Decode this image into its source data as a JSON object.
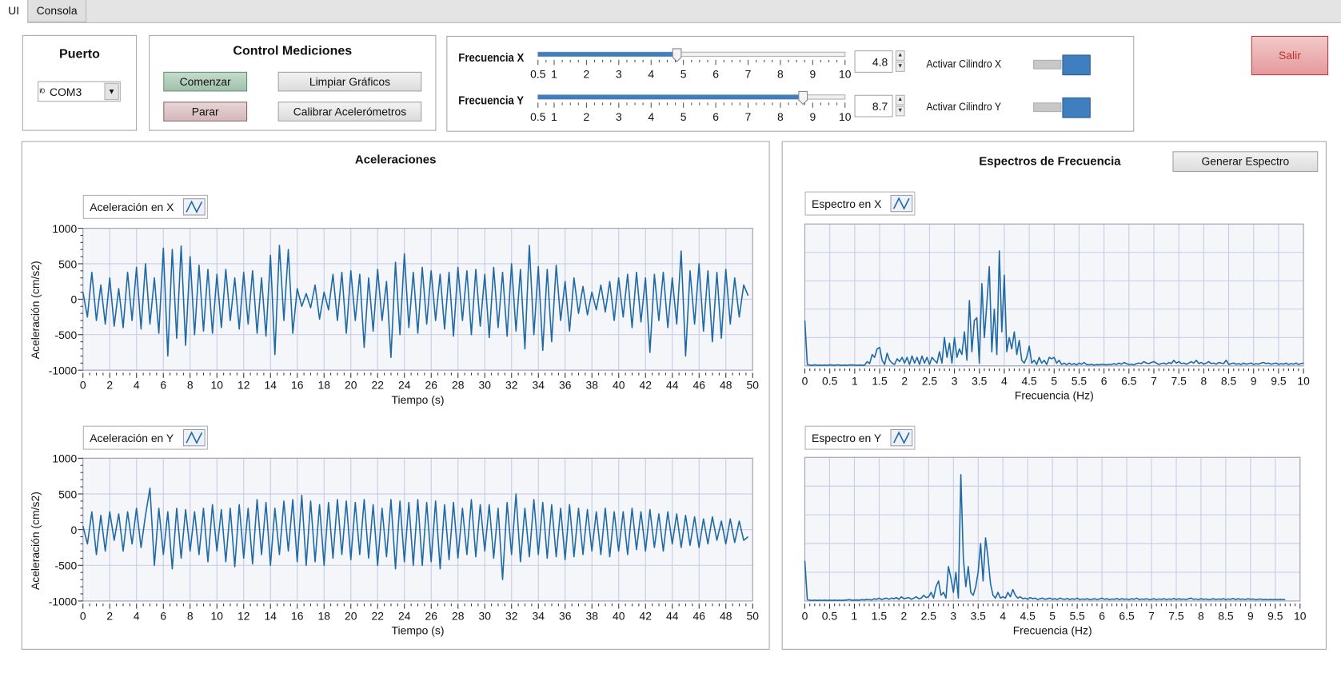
{
  "tabs": [
    {
      "label": "UI",
      "selected": true
    },
    {
      "label": "Consola",
      "selected": false
    }
  ],
  "puerto": {
    "title": "Puerto",
    "icon": "io-icon",
    "icon_text": "I/O",
    "value": "COM3"
  },
  "control": {
    "title": "Control Mediciones",
    "start": "Comenzar",
    "stop": "Parar",
    "clear": "Limpiar Gráficos",
    "calibrate": "Calibrar Acelerómetros"
  },
  "sliders": [
    {
      "label": "Frecuencia X",
      "value": 4.8,
      "value_text": "4.8",
      "min": 0.5,
      "max": 10,
      "ticks": [
        "0.5",
        "1",
        "2",
        "3",
        "4",
        "5",
        "6",
        "7",
        "8",
        "9",
        "10"
      ],
      "toggle_label": "Activar Cilindro X",
      "toggle_on": true
    },
    {
      "label": "Frecuencia Y",
      "value": 8.7,
      "value_text": "8.7",
      "min": 0.5,
      "max": 10,
      "ticks": [
        "0.5",
        "1",
        "2",
        "3",
        "4",
        "5",
        "6",
        "7",
        "8",
        "9",
        "10"
      ],
      "toggle_label": "Activar Cilindro Y",
      "toggle_on": true
    }
  ],
  "exit": {
    "label": "Salir"
  },
  "accel_panel": {
    "title": "Aceleraciones"
  },
  "spectrum_panel": {
    "title": "Espectros de Frecuencia",
    "button": "Generar Espectro"
  },
  "colors": {
    "series": "#1f6aa5",
    "grid": "#c7cbe6",
    "plot_bg": "#f4f6f9",
    "exit_text": "#c03030"
  },
  "chart_data": [
    {
      "type": "line",
      "legend": "Aceleración en X",
      "xlabel": "Tiempo (s)",
      "ylabel": "Aceleración (cm/s2)",
      "xlim": [
        0,
        50
      ],
      "ylim": [
        -1000,
        1000
      ],
      "x_major": 2,
      "x_minor": 0.5,
      "y_ticks": [
        1000,
        500,
        0,
        -500,
        -1000
      ],
      "y_minor": 100,
      "x_step": 0.3333,
      "values": [
        100,
        -250,
        380,
        -300,
        200,
        -350,
        300,
        -380,
        150,
        -400,
        380,
        -300,
        450,
        -420,
        500,
        -350,
        300,
        -480,
        720,
        -800,
        700,
        -550,
        750,
        -650,
        600,
        -500,
        480,
        -450,
        420,
        -480,
        350,
        -400,
        420,
        -300,
        300,
        -420,
        380,
        -350,
        400,
        -480,
        300,
        -520,
        620,
        -780,
        760,
        -300,
        700,
        -480,
        150,
        -100,
        80,
        -120,
        200,
        -280,
        100,
        -150,
        350,
        -300,
        380,
        -480,
        400,
        -300,
        350,
        -680,
        300,
        -450,
        420,
        -300,
        250,
        -820,
        520,
        -500,
        640,
        -400,
        380,
        -480,
        450,
        -350,
        400,
        -300,
        350,
        -420,
        380,
        -520,
        450,
        -300,
        400,
        -500,
        420,
        -380,
        350,
        -540,
        450,
        -400,
        380,
        -520,
        500,
        -450,
        420,
        -700,
        760,
        -500,
        460,
        -720,
        420,
        -600,
        480,
        -300,
        250,
        -450,
        300,
        -200,
        180,
        -220,
        100,
        -150,
        200,
        -180,
        250,
        -300,
        300,
        -250,
        350,
        -400,
        380,
        -320,
        300,
        -750,
        350,
        -300,
        380,
        -400,
        300,
        -350,
        680,
        -800,
        400,
        -350,
        500,
        -450,
        400,
        -600,
        380,
        -550,
        420,
        -350,
        300,
        -250,
        200,
        50
      ]
    },
    {
      "type": "line",
      "legend": "Aceleración en Y",
      "xlabel": "Tiempo (s)",
      "ylabel": "Aceleración (cm/s2)",
      "xlim": [
        0,
        50
      ],
      "ylim": [
        -1000,
        1000
      ],
      "x_major": 2,
      "x_minor": 0.5,
      "y_ticks": [
        1000,
        500,
        0,
        -500,
        -1000
      ],
      "y_minor": 100,
      "x_step": 0.3333,
      "values": [
        50,
        -200,
        250,
        -350,
        200,
        -300,
        250,
        -150,
        220,
        -300,
        250,
        -200,
        300,
        -250,
        200,
        580,
        -500,
        300,
        -350,
        250,
        -550,
        300,
        -400,
        280,
        -300,
        250,
        -350,
        300,
        -450,
        350,
        -300,
        280,
        -450,
        300,
        -520,
        350,
        -400,
        300,
        -480,
        420,
        -350,
        380,
        -500,
        300,
        -350,
        400,
        -300,
        420,
        -450,
        480,
        -500,
        400,
        -450,
        350,
        -500,
        380,
        -400,
        420,
        -350,
        400,
        -420,
        380,
        -350,
        420,
        -400,
        350,
        -500,
        300,
        -380,
        420,
        -550,
        400,
        -450,
        380,
        -500,
        420,
        -500,
        380,
        -450,
        400,
        -550,
        350,
        -420,
        380,
        -400,
        300,
        -350,
        420,
        -380,
        350,
        -300,
        350,
        -400,
        300,
        -700,
        380,
        -350,
        500,
        -450,
        300,
        -380,
        420,
        -350,
        380,
        -400,
        350,
        -380,
        300,
        -420,
        350,
        -380,
        300,
        -350,
        280,
        -300,
        250,
        -350,
        300,
        -380,
        250,
        -300,
        250,
        -350,
        300,
        -280,
        250,
        -300,
        280,
        -250,
        220,
        -300,
        250,
        -200,
        220,
        -250,
        200,
        -220,
        180,
        -250,
        150,
        -200,
        180,
        -150,
        120,
        -200,
        150,
        -180,
        120,
        -150,
        -100
      ]
    },
    {
      "type": "line",
      "legend": "Espectro en X",
      "xlabel": "Frecuencia (Hz)",
      "xlim": [
        0,
        10
      ],
      "ylim": [
        0,
        5
      ],
      "x_major": 0.5,
      "x_minor": 0.1,
      "y_grid": 1,
      "x_tick_labels": [
        "0",
        "0.5",
        "1",
        "1.5",
        "2",
        "2.5",
        "3",
        "3.5",
        "4",
        "4.5",
        "5",
        "5.5",
        "6",
        "6.5",
        "7",
        "7.5",
        "8",
        "8.5",
        "9",
        "9.5",
        "10"
      ],
      "x_step": 0.05,
      "values": [
        1.6,
        0.05,
        0.03,
        0.02,
        0.04,
        0.02,
        0.03,
        0.02,
        0.03,
        0.02,
        0.04,
        0.03,
        0.02,
        0.04,
        0.03,
        0.02,
        0.03,
        0.02,
        0.04,
        0.03,
        0.03,
        0.02,
        0.03,
        0.02,
        0.03,
        0.15,
        0.08,
        0.4,
        0.3,
        0.6,
        0.65,
        0.2,
        0.05,
        0.45,
        0.2,
        0.1,
        0.05,
        0.25,
        0.15,
        0.3,
        0.1,
        0.3,
        0.05,
        0.35,
        0.1,
        0.3,
        0.05,
        0.35,
        0.1,
        0.3,
        0.05,
        0.3,
        0.2,
        0.1,
        0.5,
        0.1,
        1.0,
        0.3,
        0.8,
        0.1,
        1.0,
        0.3,
        0.6,
        0.4,
        1.2,
        0.2,
        2.3,
        0.5,
        1.6,
        1.7,
        0.1,
        2.9,
        1.0,
        2.2,
        3.5,
        0.5,
        2.0,
        0.4,
        4.05,
        1.2,
        3.2,
        0.5,
        1.0,
        0.6,
        1.2,
        0.4,
        0.9,
        0.2,
        0.1,
        0.3,
        0.7,
        0.1,
        0.2,
        0.05,
        0.3,
        0.1,
        0.2,
        0.05,
        0.3,
        0.25,
        0.3,
        0.1,
        0.2,
        0.05,
        0.1,
        0.04,
        0.1,
        0.05,
        0.08,
        0.04,
        0.1,
        0.06,
        0.12,
        0.05,
        0.04,
        0.06,
        0.03,
        0.05,
        0.04,
        0.06,
        0.05,
        0.04,
        0.06,
        0.05,
        0.08,
        0.05,
        0.1,
        0.06,
        0.12,
        0.08,
        0.05,
        0.06,
        0.04,
        0.08,
        0.1,
        0.08,
        0.15,
        0.1,
        0.08,
        0.12,
        0.15,
        0.1,
        0.05,
        0.08,
        0.1,
        0.06,
        0.12,
        0.08,
        0.2,
        0.1,
        0.15,
        0.08,
        0.1,
        0.06,
        0.1,
        0.15,
        0.1,
        0.2,
        0.08,
        0.12,
        0.06,
        0.1,
        0.15,
        0.08,
        0.1,
        0.06,
        0.12,
        0.1,
        0.08,
        0.2,
        0.05,
        0.08,
        0.1,
        0.06,
        0.08,
        0.05,
        0.1,
        0.06,
        0.08,
        0.1,
        0.05,
        0.08,
        0.06,
        0.1,
        0.12,
        0.08,
        0.1,
        0.06,
        0.08,
        0.1,
        0.05,
        0.08,
        0.06,
        0.1,
        0.05,
        0.08,
        0.06,
        0.1,
        0.05,
        0.08,
        0.1
      ]
    },
    {
      "type": "line",
      "legend": "Espectro en Y",
      "xlabel": "Frecuencia (Hz)",
      "xlim": [
        0,
        10
      ],
      "ylim": [
        0,
        5
      ],
      "x_major": 0.5,
      "x_minor": 0.1,
      "y_grid": 1,
      "x_tick_labels": [
        "0",
        "0.5",
        "1",
        "1.5",
        "2",
        "2.5",
        "3",
        "3.5",
        "4",
        "4.5",
        "5",
        "5.5",
        "6",
        "6.5",
        "7",
        "7.5",
        "8",
        "8.5",
        "9",
        "9.5",
        "10"
      ],
      "x_step": 0.05,
      "values": [
        1.4,
        0.05,
        0.03,
        0.02,
        0.03,
        0.02,
        0.03,
        0.02,
        0.03,
        0.02,
        0.03,
        0.02,
        0.03,
        0.02,
        0.03,
        0.02,
        0.03,
        0.04,
        0.05,
        0.03,
        0.03,
        0.04,
        0.03,
        0.05,
        0.04,
        0.06,
        0.05,
        0.04,
        0.08,
        0.06,
        0.1,
        0.05,
        0.08,
        0.1,
        0.06,
        0.1,
        0.08,
        0.12,
        0.06,
        0.15,
        0.08,
        0.1,
        0.12,
        0.06,
        0.1,
        0.15,
        0.08,
        0.1,
        0.2,
        0.12,
        0.15,
        0.3,
        0.1,
        0.5,
        0.7,
        0.2,
        0.3,
        0.1,
        1.2,
        0.8,
        0.3,
        1.0,
        0.1,
        4.4,
        1.5,
        0.5,
        1.2,
        0.3,
        0.2,
        0.5,
        1.0,
        2.0,
        0.7,
        2.2,
        1.5,
        0.6,
        0.2,
        0.1,
        0.3,
        0.1,
        0.15,
        0.1,
        0.3,
        0.15,
        0.4,
        0.2,
        0.1,
        0.15,
        0.08,
        0.1,
        0.06,
        0.12,
        0.08,
        0.1,
        0.05,
        0.08,
        0.1,
        0.06,
        0.08,
        0.1,
        0.06,
        0.08,
        0.05,
        0.1,
        0.07,
        0.06,
        0.09,
        0.05,
        0.08,
        0.06,
        0.1,
        0.05,
        0.07,
        0.06,
        0.08,
        0.05,
        0.06,
        0.08,
        0.05,
        0.07,
        0.1,
        0.06,
        0.08,
        0.05,
        0.07,
        0.06,
        0.09,
        0.05,
        0.08,
        0.06,
        0.07,
        0.05,
        0.08,
        0.06,
        0.1,
        0.05,
        0.07,
        0.06,
        0.08,
        0.05,
        0.06,
        0.08,
        0.05,
        0.07,
        0.06,
        0.08,
        0.05,
        0.07,
        0.06,
        0.09,
        0.05,
        0.08,
        0.06,
        0.07,
        0.05,
        0.08,
        0.1,
        0.06,
        0.07,
        0.05,
        0.08,
        0.06,
        0.07,
        0.05,
        0.06,
        0.08,
        0.05,
        0.07,
        0.06,
        0.08,
        0.05,
        0.07,
        0.06,
        0.09,
        0.05,
        0.08,
        0.06,
        0.07,
        0.05,
        0.08,
        0.06,
        0.07,
        0.05,
        0.06,
        0.07,
        0.05,
        0.06,
        0.05,
        0.06,
        0.05,
        0.06,
        0.05,
        0.06,
        0.05,
        0.05
      ]
    }
  ]
}
